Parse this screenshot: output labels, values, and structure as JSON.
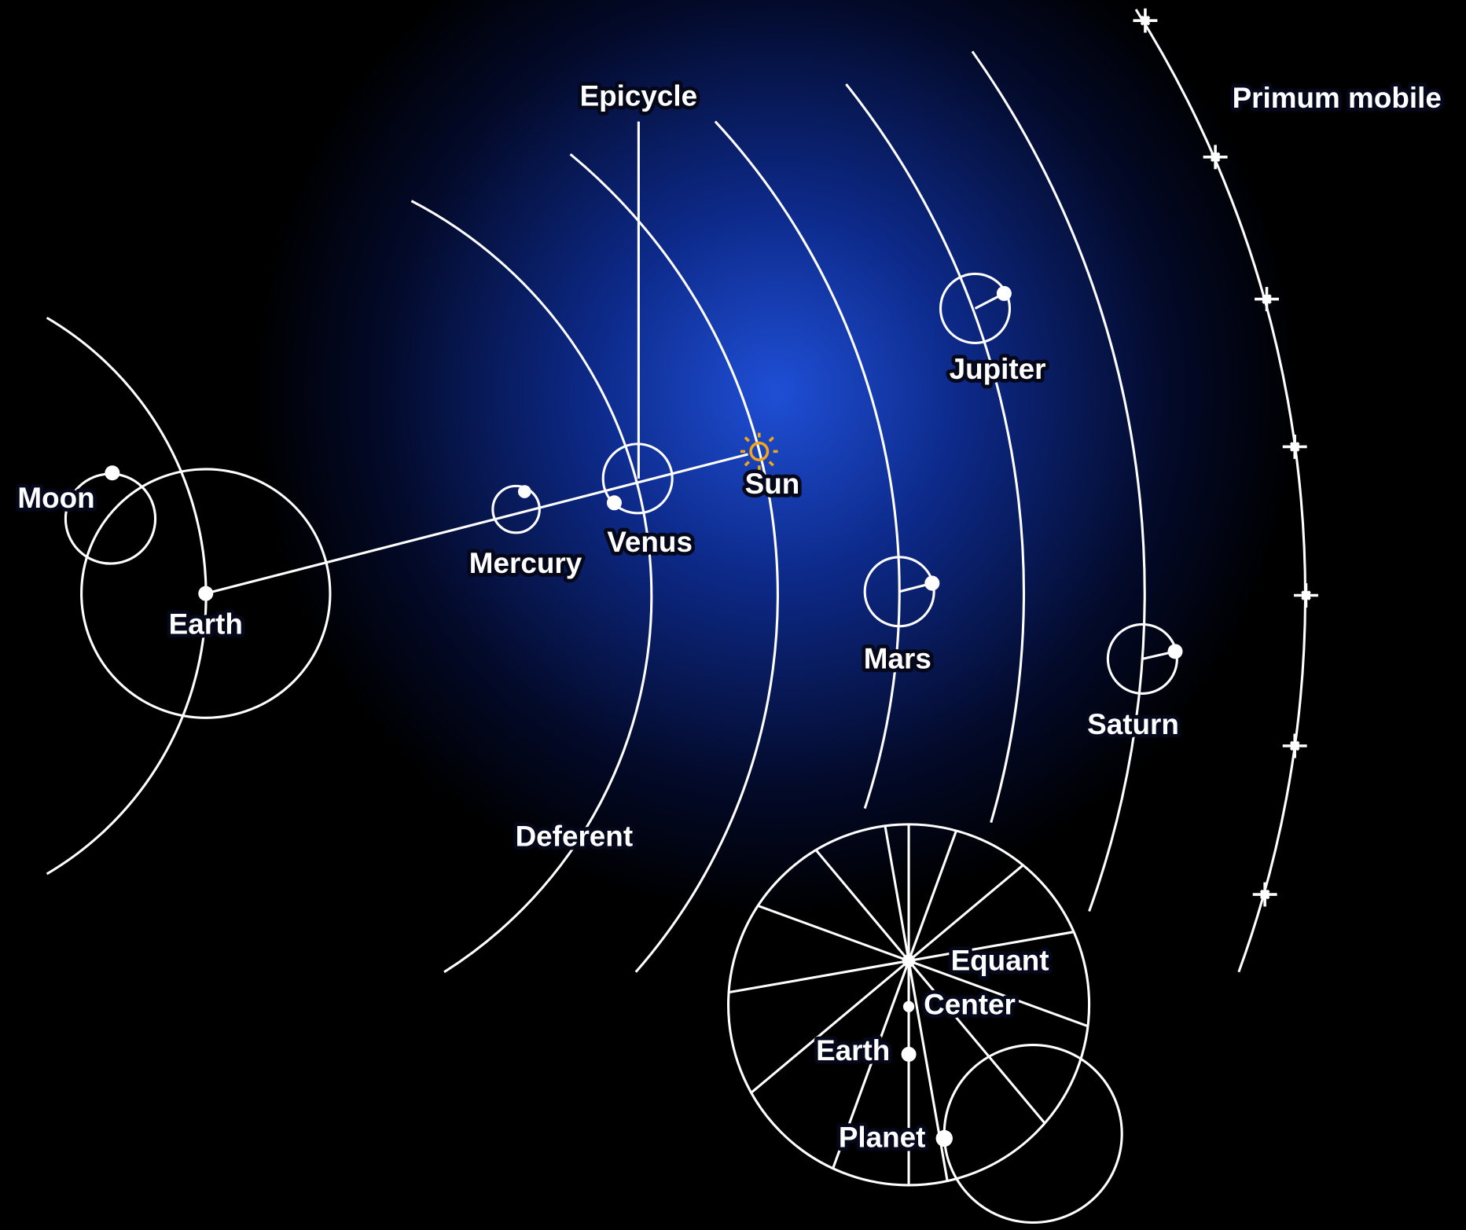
{
  "labels": {
    "epicycle": "Epicycle",
    "primum_mobile": "Primum mobile",
    "moon": "Moon",
    "earth": "Earth",
    "mercury": "Mercury",
    "venus": "Venus",
    "sun": "Sun",
    "jupiter": "Jupiter",
    "mars": "Mars",
    "saturn": "Saturn",
    "deferent": "Deferent"
  },
  "inset": {
    "equant": "Equant",
    "center": "Center",
    "earth": "Earth",
    "planet": "Planet"
  }
}
